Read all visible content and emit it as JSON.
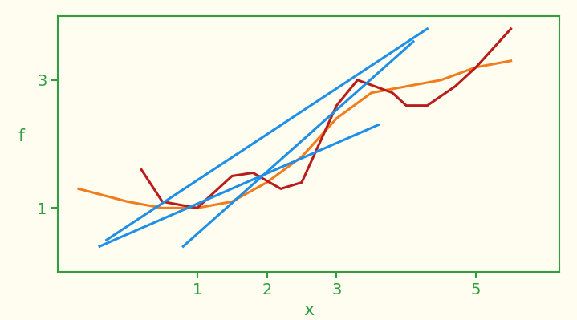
{
  "chart_data": {
    "type": "line",
    "x_label": "x",
    "y_label": "f",
    "xlim": [
      -1,
      6.2
    ],
    "ylim": [
      0,
      4
    ],
    "xticks": [
      1,
      2,
      3,
      5
    ],
    "yticks": [
      1,
      3
    ],
    "grid": false,
    "series": [
      {
        "color": "#f07c1e",
        "line_style": "solid",
        "x": [
          -0.7,
          0,
          0.5,
          1,
          1.5,
          2,
          2.5,
          3,
          3.5,
          4,
          4.5,
          5,
          5.5
        ],
        "values": [
          1.3,
          1.1,
          1.0,
          1.0,
          1.1,
          1.4,
          1.8,
          2.4,
          2.8,
          2.9,
          3.0,
          3.2,
          3.3
        ]
      },
      {
        "color": "#b81c1c",
        "line_style": "solid",
        "x": [
          0.2,
          0.5,
          1,
          1.5,
          1.8,
          2.2,
          2.5,
          3,
          3.3,
          3.8,
          4,
          4.3,
          4.7,
          5,
          5.5
        ],
        "values": [
          1.6,
          1.1,
          1.0,
          1.5,
          1.55,
          1.3,
          1.4,
          2.6,
          3.0,
          2.8,
          2.6,
          2.6,
          2.9,
          3.2,
          3.8
        ]
      },
      {
        "color": "#1e8fe6",
        "line_style": "solid",
        "x": [
          -0.4,
          3.6
        ],
        "values": [
          0.4,
          2.3
        ]
      },
      {
        "color": "#1e8fe6",
        "line_style": "solid",
        "x": [
          -0.3,
          4.3
        ],
        "values": [
          0.5,
          3.8
        ]
      },
      {
        "color": "#1e8fe6",
        "line_style": "solid",
        "x": [
          0.8,
          4.1
        ],
        "values": [
          0.4,
          3.6
        ]
      }
    ]
  }
}
